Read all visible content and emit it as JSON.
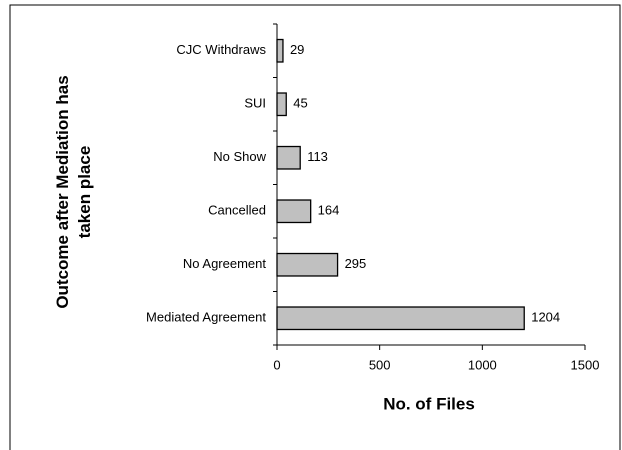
{
  "chart_data": {
    "type": "hbar",
    "categories": [
      "CJC Withdraws",
      "SUI",
      "No Show",
      "Cancelled",
      "No Agreement",
      "Mediated Agreement"
    ],
    "values": [
      29,
      45,
      113,
      164,
      295,
      1204
    ],
    "color": "#c0c0c0",
    "xlim": [
      0,
      1500
    ],
    "xticks": [
      0,
      500,
      1000,
      1500
    ],
    "xlabel": "No. of Files",
    "ylabel": "Outcome after Mediation has taken place"
  }
}
